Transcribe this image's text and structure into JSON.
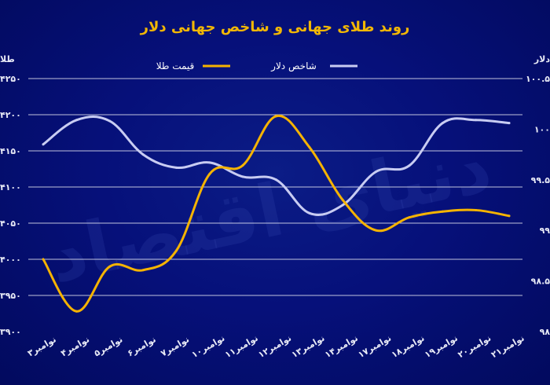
{
  "chart_data": {
    "type": "line",
    "title": "روند طلای جهانی و شاخص جهانی دلار",
    "watermark": "دنیای اقتصاد",
    "categories": [
      "۳نوامبر",
      "۴نوامبر",
      "۵نوامبر",
      "۶نوامبر",
      "۷نوامبر",
      "۱۰نوامبر",
      "۱۱نوامبر",
      "۱۲نوامبر",
      "۱۳نوامبر",
      "۱۴نوامبر",
      "۱۷نوامبر",
      "۱۸نوامبر",
      "۱۹نوامبر",
      "۲۰نوامبر",
      "۲۱نوامبر"
    ],
    "left_axis": {
      "name": "طلا",
      "ylim": [
        3900,
        4250
      ],
      "ticks": [
        3900,
        3950,
        4000,
        4050,
        4100,
        4150,
        4200,
        4250
      ],
      "tick_labels": [
        "۳۹۰۰",
        "۳۹۵۰",
        "۴۰۰۰",
        "۴۰۵۰",
        "۴۱۰۰",
        "۴۱۵۰",
        "۴۲۰۰",
        "۴۲۵۰"
      ]
    },
    "right_axis": {
      "name": "دلار",
      "ylim": [
        98,
        100.5
      ],
      "ticks": [
        98,
        98.5,
        99,
        99.5,
        100,
        100.5
      ],
      "tick_labels": [
        "۹۸",
        "۹۸.۵",
        "۹۹",
        "۹۹.۵",
        "۱۰۰",
        "۱۰۰.۵"
      ]
    },
    "series": [
      {
        "name": "قیمت طلا",
        "axis": "left",
        "color": "#f5b301",
        "values": [
          4000,
          3928,
          3990,
          3985,
          4012,
          4118,
          4130,
          4198,
          4155,
          4082,
          4040,
          4058,
          4066,
          4068,
          4060
        ]
      },
      {
        "name": "شاخص دلار",
        "axis": "right",
        "color": "#c8ccf2",
        "values": [
          99.85,
          100.09,
          100.08,
          99.75,
          99.62,
          99.67,
          99.53,
          99.5,
          99.17,
          99.25,
          99.58,
          99.64,
          100.06,
          100.09,
          100.06
        ]
      }
    ],
    "legend_placement": "top-center",
    "grid": true
  }
}
